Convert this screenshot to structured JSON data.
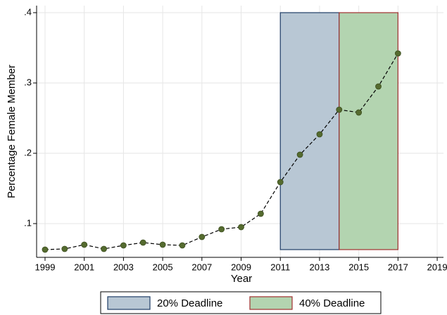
{
  "chart_data": {
    "type": "line",
    "x_label": "Year",
    "y_label": "Percentage Female Member",
    "x": [
      1999,
      2000,
      2001,
      2002,
      2003,
      2004,
      2005,
      2006,
      2007,
      2008,
      2009,
      2010,
      2011,
      2012,
      2013,
      2014,
      2015,
      2016,
      2017
    ],
    "values": [
      0.063,
      0.064,
      0.07,
      0.064,
      0.069,
      0.073,
      0.07,
      0.069,
      0.081,
      0.092,
      0.095,
      0.114,
      0.159,
      0.198,
      0.227,
      0.262,
      0.258,
      0.295,
      0.342
    ],
    "color": "#556b2f",
    "line_style": "dashed",
    "xlim": [
      1998.57,
      2019.32
    ],
    "ylim": [
      0.052,
      0.41
    ],
    "xticks": [
      1999,
      2001,
      2003,
      2005,
      2007,
      2009,
      2011,
      2013,
      2015,
      2017,
      2019
    ],
    "yticks": [
      {
        "value": 0.1,
        "label": ".1"
      },
      {
        "value": 0.2,
        "label": ".2"
      },
      {
        "value": 0.3,
        "label": ".3"
      },
      {
        "value": 0.4,
        "label": ".4"
      }
    ],
    "grid": true,
    "legend_position": "bottom",
    "shaded_regions": [
      {
        "name": "20% Deadline",
        "x": [
          2011,
          2014
        ],
        "y": [
          0.063,
          0.4
        ],
        "color": "#b8c7d4",
        "edge_color": "#1f3d66"
      },
      {
        "name": "40% Deadline",
        "x": [
          2014,
          2017
        ],
        "y": [
          0.063,
          0.4
        ],
        "color": "#b3d4b0",
        "edge_color": "#a03030"
      }
    ]
  }
}
